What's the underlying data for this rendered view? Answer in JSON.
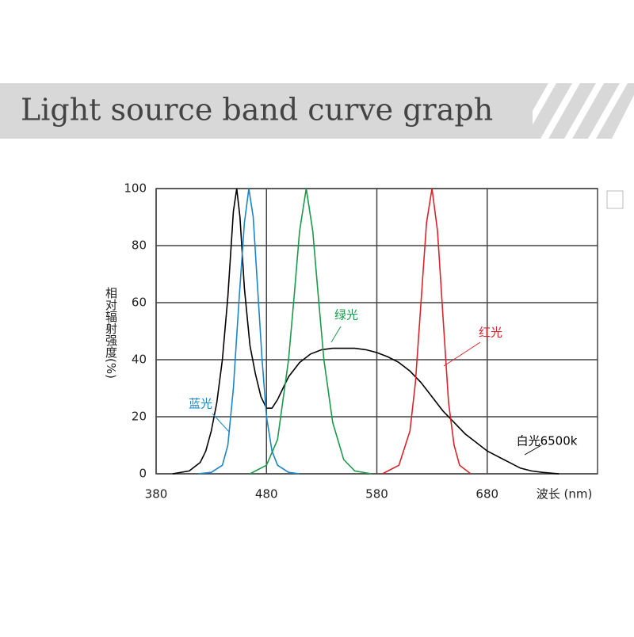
{
  "chart_data": {
    "type": "line",
    "title": "Light source band curve graph",
    "x_label": "波长 (nm)",
    "y_label": "相对辐射强度(%)",
    "xlim": [
      380,
      780
    ],
    "xticks": [
      380,
      480,
      580,
      680
    ],
    "ylim": [
      0,
      100
    ],
    "yticks": [
      0,
      20,
      40,
      60,
      80,
      100
    ],
    "grid": true,
    "series": [
      {
        "name": "白光6500k",
        "color": "#000000",
        "x": [
          395,
          410,
          420,
          425,
          430,
          435,
          440,
          445,
          450,
          453,
          456,
          460,
          465,
          470,
          475,
          480,
          485,
          490,
          495,
          500,
          510,
          520,
          530,
          540,
          550,
          560,
          570,
          580,
          590,
          600,
          610,
          620,
          630,
          640,
          650,
          660,
          670,
          680,
          690,
          700,
          710,
          720,
          730,
          745
        ],
        "values": [
          0,
          1,
          4,
          8,
          15,
          25,
          40,
          62,
          92,
          100,
          90,
          65,
          45,
          35,
          27,
          23,
          23,
          26,
          30,
          34,
          39,
          42,
          43.5,
          44,
          44,
          44,
          43.5,
          42.5,
          41,
          39,
          36,
          32,
          27,
          22,
          18,
          14,
          11,
          8,
          6,
          4,
          2,
          1,
          0.5,
          0
        ]
      },
      {
        "name": "蓝光",
        "color": "#1a86c8",
        "x": [
          418,
          430,
          440,
          445,
          450,
          455,
          460,
          464,
          468,
          472,
          476,
          480,
          485,
          490,
          500,
          510
        ],
        "values": [
          0,
          0.5,
          3,
          10,
          30,
          60,
          88,
          100,
          90,
          65,
          40,
          20,
          8,
          3,
          0.5,
          0
        ]
      },
      {
        "name": "绿光",
        "color": "#1a9a4a",
        "x": [
          465,
          480,
          490,
          500,
          505,
          510,
          516,
          522,
          527,
          532,
          540,
          550,
          560,
          575
        ],
        "values": [
          0,
          3,
          12,
          40,
          62,
          85,
          100,
          85,
          62,
          40,
          18,
          5,
          1,
          0
        ]
      },
      {
        "name": "红光",
        "color": "#d9242b",
        "x": [
          585,
          600,
          610,
          615,
          620,
          625,
          630,
          635,
          640,
          645,
          650,
          655,
          665
        ],
        "values": [
          0,
          3,
          15,
          32,
          60,
          88,
          100,
          85,
          55,
          25,
          10,
          3,
          0
        ]
      }
    ]
  }
}
